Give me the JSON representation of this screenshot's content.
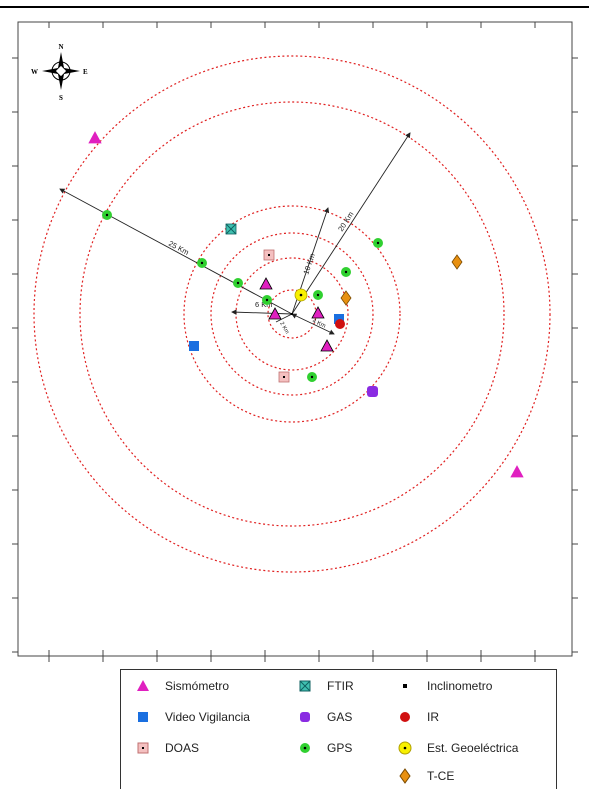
{
  "compass": {
    "n": "N",
    "s": "S",
    "e": "E",
    "w": "W"
  },
  "distances": {
    "r25": "25 Km",
    "r20": "20 Km",
    "r10": "10 Km",
    "r6": "6 Km",
    "r4": "4 Km",
    "r2": "2 Km"
  },
  "legend": [
    {
      "key": "sismometro",
      "label": "Sismómetro",
      "color": "#e020c0",
      "icon": "triangle"
    },
    {
      "key": "ftir",
      "label": "FTIR",
      "color": "#20b0a0",
      "icon": "box-x"
    },
    {
      "key": "inclinometro",
      "label": "Inclinometro",
      "color": "#000000",
      "icon": "small-square"
    },
    {
      "key": "video",
      "label": "Video Vigilancia",
      "color": "#1a6fe0",
      "icon": "square"
    },
    {
      "key": "gas",
      "label": "GAS",
      "color": "#8a2be2",
      "icon": "rounded-square"
    },
    {
      "key": "ir",
      "label": "IR",
      "color": "#d01010",
      "icon": "circle"
    },
    {
      "key": "doas",
      "label": "DOAS",
      "color": "#f0b0b0",
      "icon": "dot-square"
    },
    {
      "key": "gps",
      "label": "GPS",
      "color": "#30d030",
      "icon": "dot-circle"
    },
    {
      "key": "geo",
      "label": "Est. Geoeléctrica",
      "color": "#f8f000",
      "icon": "dot-circle"
    },
    {
      "key": "tce",
      "label": "T-CE",
      "color": "#e89010",
      "icon": "diamond"
    }
  ]
}
